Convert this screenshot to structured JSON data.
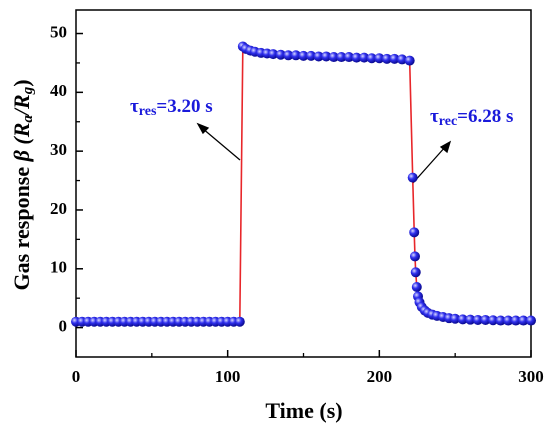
{
  "chart_data": {
    "type": "line",
    "xlabel": "Time   (s)",
    "ylabel": [
      "Gas response ",
      "β",
      "  (R",
      "a",
      "/R",
      "g",
      ")"
    ],
    "xlim": [
      0,
      300
    ],
    "xticks": [
      0,
      100,
      200,
      300
    ],
    "xminor": [
      50,
      150,
      250
    ],
    "ylim": [
      -5,
      54
    ],
    "yticks": [
      0,
      10,
      20,
      30,
      40,
      50
    ],
    "yminor": [
      5,
      15,
      25,
      35,
      45
    ],
    "line_color": "#e8262a",
    "marker_color": "#2020e0",
    "annotations": [
      [
        "τ",
        "res",
        "=3.20 s"
      ],
      [
        "τ",
        "rec",
        "=6.28 s"
      ]
    ],
    "annotation_color": "#1a1adb",
    "x": [
      0,
      4,
      8,
      12,
      16,
      20,
      24,
      28,
      32,
      36,
      40,
      44,
      48,
      52,
      56,
      60,
      64,
      68,
      72,
      76,
      80,
      84,
      88,
      92,
      96,
      100,
      104,
      108,
      110,
      112,
      115,
      118,
      122,
      126,
      130,
      135,
      140,
      145,
      150,
      155,
      160,
      165,
      170,
      175,
      180,
      185,
      190,
      195,
      200,
      205,
      210,
      215,
      220,
      222,
      223,
      223.5,
      224,
      224.7,
      225.5,
      226.5,
      228,
      230,
      232,
      235,
      238,
      242,
      246,
      250,
      255,
      260,
      265,
      270,
      275,
      280,
      285,
      290,
      295,
      300
    ],
    "series": [
      {
        "values": [
          1.0,
          1.0,
          1.0,
          1.0,
          1.0,
          1.0,
          1.0,
          1.0,
          1.0,
          1.0,
          1.0,
          1.0,
          1.0,
          1.0,
          1.0,
          1.0,
          1.0,
          1.0,
          1.0,
          1.0,
          1.0,
          1.0,
          1.0,
          1.0,
          1.0,
          1.0,
          1.0,
          1.0,
          47.8,
          47.4,
          47.1,
          46.9,
          46.7,
          46.6,
          46.5,
          46.4,
          46.3,
          46.3,
          46.2,
          46.2,
          46.1,
          46.1,
          46.0,
          46.0,
          46.0,
          45.9,
          45.9,
          45.8,
          45.8,
          45.7,
          45.7,
          45.6,
          45.4,
          25.5,
          16.2,
          12.1,
          9.4,
          6.9,
          5.3,
          4.3,
          3.5,
          2.9,
          2.5,
          2.2,
          2.0,
          1.8,
          1.6,
          1.5,
          1.4,
          1.35,
          1.3,
          1.3,
          1.25,
          1.2,
          1.2,
          1.2,
          1.2,
          1.2
        ]
      }
    ]
  }
}
